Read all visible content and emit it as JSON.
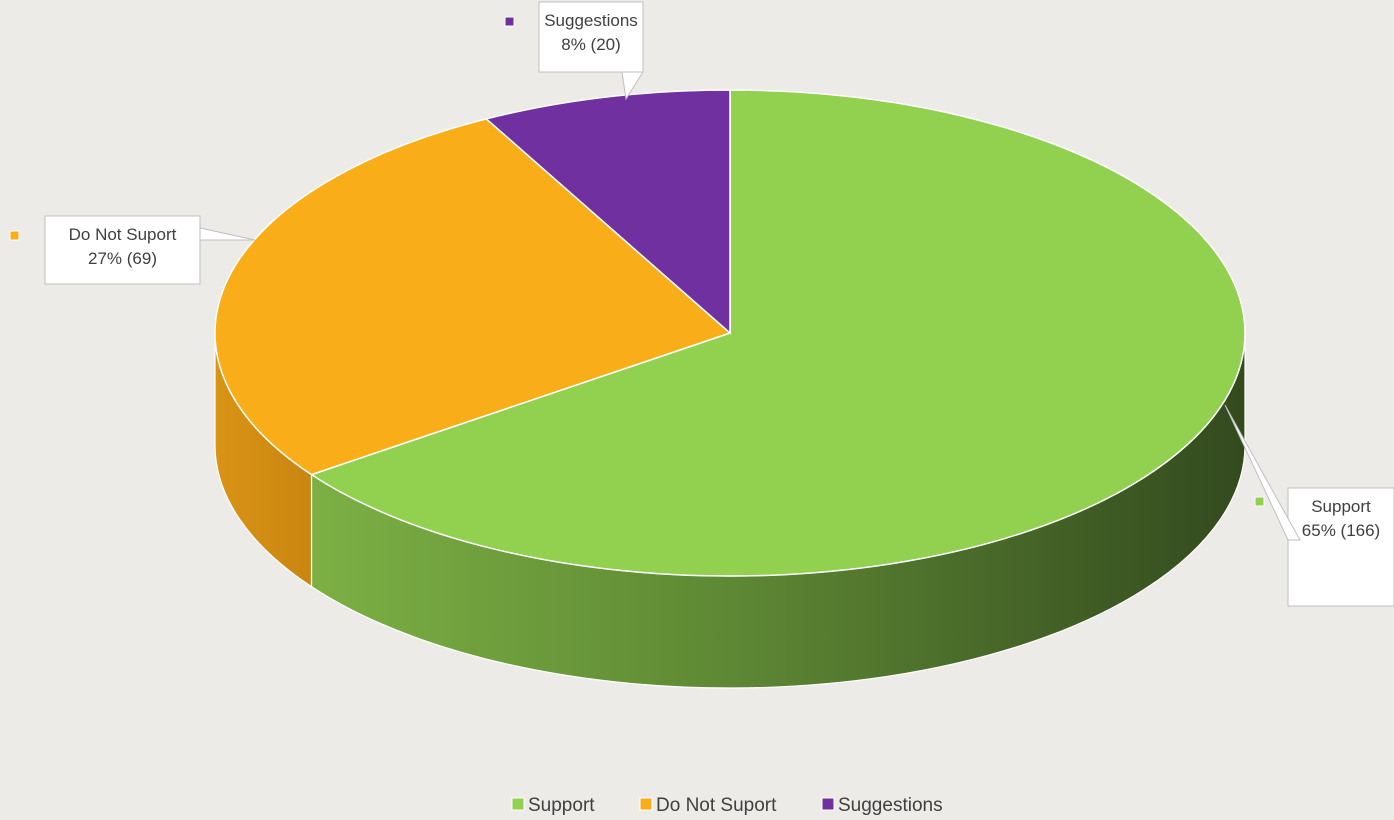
{
  "chart_data": {
    "type": "pie",
    "title": "",
    "categories": [
      "Support",
      "Do Not Suport",
      "Suggestions"
    ],
    "values": [
      166,
      69,
      20
    ],
    "percent_labels": [
      "65% (166)",
      "27% (69)",
      "8% (20)"
    ],
    "colors": [
      "#92d050",
      "#f9ad19",
      "#7030a0"
    ],
    "legend_placement": "bottom",
    "legend": [
      "Support",
      "Do Not Suport",
      "Suggestions"
    ],
    "style": "3d"
  }
}
